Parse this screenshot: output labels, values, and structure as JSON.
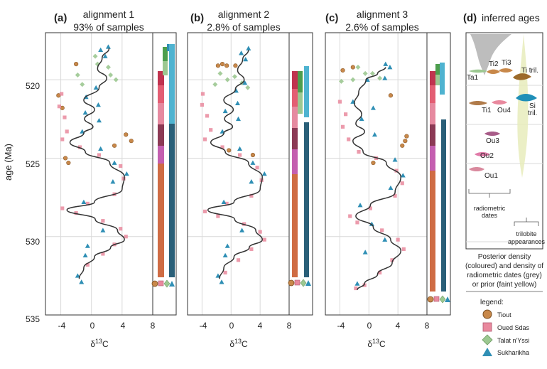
{
  "ylabel": "age (Ma)",
  "xlabel": "δ13C",
  "y_ticks": [
    520,
    525,
    530,
    535
  ],
  "x_ticks": [
    -4,
    0,
    4,
    8
  ],
  "chart_data": [
    {
      "type": "scatter",
      "letter": "(a)",
      "title_line1": "alignment 1",
      "title_line2": "93% of samples",
      "ylim": [
        535,
        517
      ],
      "xlim": [
        -6,
        8
      ],
      "series": [
        {
          "name": "Tiout",
          "points": [
            [
              -4.3,
              521.0
            ],
            [
              -3.8,
              521.8
            ],
            [
              -2.0,
              519.0
            ],
            [
              3.0,
              524.2
            ],
            [
              4.5,
              523.5
            ],
            [
              5.2,
              523.9
            ],
            [
              -3.4,
              525.0
            ],
            [
              -3.0,
              525.3
            ]
          ]
        },
        {
          "name": "Oued Sdas",
          "points": [
            [
              -3.9,
              520.9
            ],
            [
              -4.2,
              521.7
            ],
            [
              -3.5,
              522.4
            ],
            [
              -3.2,
              523.3
            ],
            [
              -3.8,
              523.8
            ],
            [
              -1.5,
              524.3
            ],
            [
              1.0,
              524.8
            ],
            [
              3.8,
              525.5
            ],
            [
              4.2,
              526.3
            ],
            [
              3.0,
              527.3
            ],
            [
              -0.5,
              527.9
            ],
            [
              -3.8,
              528.2
            ],
            [
              -2.0,
              528.5
            ],
            [
              1.5,
              529.0
            ],
            [
              3.8,
              529.5
            ],
            [
              4.5,
              530.0
            ],
            [
              3.0,
              530.5
            ],
            [
              1.5,
              531.1
            ],
            [
              -0.5,
              531.8
            ]
          ]
        },
        {
          "name": "Talat n'Yssi",
          "points": [
            [
              0.5,
              518.5
            ],
            [
              0.8,
              519.0
            ],
            [
              2.2,
              519.2
            ],
            [
              2.5,
              519.7
            ],
            [
              3.2,
              520.0
            ],
            [
              -1.8,
              519.7
            ],
            [
              -1.2,
              520.3
            ]
          ]
        },
        {
          "name": "Sukharikha",
          "points": [
            [
              2.2,
              517.9
            ],
            [
              1.2,
              518.1
            ],
            [
              1.8,
              518.5
            ],
            [
              0.6,
              520.5
            ],
            [
              -0.7,
              521.1
            ],
            [
              0.9,
              521.6
            ],
            [
              -0.8,
              522.1
            ],
            [
              1.0,
              522.6
            ],
            [
              -1.2,
              523.3
            ],
            [
              1.2,
              524.4
            ],
            [
              3.0,
              525.3
            ],
            [
              4.6,
              526.0
            ],
            [
              2.8,
              526.5
            ],
            [
              -1.0,
              527.8
            ],
            [
              1.5,
              529.6
            ],
            [
              -0.5,
              530.6
            ],
            [
              -0.8,
              531.2
            ],
            [
              -1.8,
              532.5
            ],
            [
              -1.3,
              532.9
            ]
          ]
        }
      ],
      "line": {
        "x": [
          2.3,
          1.4,
          0.8,
          2.0,
          1.0,
          -1.0,
          0.4,
          -0.9,
          0.2,
          -1.0,
          -2.8,
          -0.8,
          2.4,
          4.3,
          4.0,
          0.4,
          -3.2,
          0.5,
          3.4,
          4.3,
          2.5,
          0.4,
          -1.0,
          -1.6
        ],
        "y": [
          518.0,
          518.6,
          519.3,
          519.9,
          520.5,
          521.3,
          521.9,
          522.5,
          523.0,
          523.4,
          524.0,
          524.6,
          525.3,
          526.2,
          527.0,
          527.8,
          528.3,
          528.9,
          529.6,
          530.2,
          530.7,
          531.3,
          532.0,
          532.7
        ]
      }
    },
    {
      "type": "scatter",
      "letter": "(b)",
      "title_line1": "alignment 2",
      "title_line2": "2.8% of samples",
      "ylim": [
        535,
        517
      ],
      "xlim": [
        -6,
        8
      ],
      "series": [
        {
          "name": "Tiout",
          "points": [
            [
              -1.8,
              519.1
            ],
            [
              -0.6,
              519.1
            ],
            [
              0.6,
              519.1
            ],
            [
              -1.2,
              519.0
            ],
            [
              3.0,
              524.8
            ],
            [
              -0.3,
              524.5
            ]
          ]
        },
        {
          "name": "Oued Sdas",
          "points": [
            [
              -3.9,
              520.9
            ],
            [
              -4.0,
              521.6
            ],
            [
              -3.3,
              522.3
            ],
            [
              -2.8,
              523.2
            ],
            [
              -3.6,
              523.8
            ],
            [
              -1.2,
              524.3
            ],
            [
              1.2,
              524.8
            ],
            [
              3.6,
              525.6
            ],
            [
              4.2,
              526.4
            ],
            [
              2.8,
              527.4
            ],
            [
              -0.6,
              527.9
            ],
            [
              -3.6,
              528.4
            ],
            [
              -1.8,
              528.7
            ],
            [
              1.8,
              529.2
            ],
            [
              4.0,
              529.7
            ],
            [
              4.6,
              530.2
            ],
            [
              2.8,
              530.8
            ],
            [
              1.0,
              531.5
            ],
            [
              -0.8,
              532.3
            ]
          ]
        },
        {
          "name": "Talat n'Yssi",
          "points": [
            [
              -1.5,
              519.6
            ],
            [
              -0.5,
              520.0
            ],
            [
              0.5,
              519.8
            ],
            [
              1.5,
              520.2
            ],
            [
              2.3,
              520.5
            ],
            [
              -2.2,
              520.3
            ]
          ]
        },
        {
          "name": "Sukharikha",
          "points": [
            [
              2.4,
              518.0
            ],
            [
              1.4,
              518.3
            ],
            [
              2.0,
              518.7
            ],
            [
              1.9,
              520.2
            ],
            [
              0.7,
              520.7
            ],
            [
              0.9,
              521.5
            ],
            [
              -0.8,
              522.0
            ],
            [
              1.0,
              522.5
            ],
            [
              -1.2,
              523.3
            ],
            [
              1.2,
              524.4
            ],
            [
              3.0,
              525.3
            ],
            [
              4.6,
              526.0
            ],
            [
              2.8,
              526.5
            ],
            [
              -1.0,
              527.8
            ],
            [
              1.5,
              529.6
            ],
            [
              -0.5,
              530.6
            ],
            [
              -0.8,
              531.2
            ],
            [
              -1.8,
              532.5
            ],
            [
              -1.3,
              532.9
            ]
          ]
        }
      ],
      "line": {
        "x": [
          2.4,
          1.6,
          0.9,
          1.8,
          0.6,
          -1.0,
          0.3,
          -0.9,
          0.2,
          -1.0,
          -2.8,
          -0.8,
          2.4,
          4.3,
          4.0,
          0.4,
          -3.2,
          0.5,
          3.4,
          4.3,
          2.5,
          0.4,
          -1.0,
          -1.6
        ],
        "y": [
          518.1,
          518.7,
          519.4,
          520.0,
          520.6,
          521.3,
          521.9,
          522.5,
          523.0,
          523.4,
          524.0,
          524.6,
          525.3,
          526.2,
          527.0,
          527.8,
          528.3,
          528.9,
          529.6,
          530.2,
          530.7,
          531.3,
          532.0,
          532.7
        ]
      }
    },
    {
      "type": "scatter",
      "letter": "(c)",
      "title_line1": "alignment 3",
      "title_line2": "2.6% of samples",
      "ylim": [
        535,
        517
      ],
      "xlim": [
        -6,
        8
      ],
      "series": [
        {
          "name": "Tiout",
          "points": [
            [
              -3.6,
              519.4
            ],
            [
              -2.2,
              519.2
            ],
            [
              3.0,
              521.0
            ],
            [
              4.6,
              524.2
            ],
            [
              5.2,
              523.6
            ],
            [
              5.0,
              523.9
            ],
            [
              0.6,
              525.3
            ]
          ]
        },
        {
          "name": "Oued Sdas",
          "points": [
            [
              -4.0,
              521.4
            ],
            [
              -3.2,
              522.2
            ],
            [
              -3.6,
              523.0
            ],
            [
              -2.8,
              523.8
            ],
            [
              -1.4,
              524.6
            ],
            [
              1.0,
              525.0
            ],
            [
              3.8,
              525.8
            ],
            [
              4.6,
              526.6
            ],
            [
              3.6,
              527.4
            ],
            [
              0.2,
              528.2
            ],
            [
              -2.6,
              528.7
            ],
            [
              -1.6,
              529.1
            ],
            [
              1.8,
              529.6
            ],
            [
              4.0,
              530.2
            ],
            [
              4.8,
              530.8
            ],
            [
              3.2,
              531.5
            ],
            [
              1.5,
              532.3
            ],
            [
              -0.6,
              533.1
            ],
            [
              -1.8,
              533.3
            ]
          ]
        },
        {
          "name": "Talat n'Yssi",
          "points": [
            [
              -1.5,
              519.2
            ],
            [
              -0.5,
              519.6
            ],
            [
              0.5,
              519.6
            ],
            [
              1.5,
              519.9
            ],
            [
              -3.8,
              520.1
            ],
            [
              -2.2,
              520.0
            ]
          ]
        },
        {
          "name": "Sukharikha",
          "points": [
            [
              2.3,
              519.0
            ],
            [
              2.9,
              519.2
            ],
            [
              2.2,
              519.9
            ],
            [
              -0.2,
              520.0
            ],
            [
              -2.2,
              521.4
            ],
            [
              0.6,
              521.8
            ],
            [
              -1.0,
              522.5
            ],
            [
              0.8,
              523.5
            ],
            [
              3.6,
              525.1
            ],
            [
              4.7,
              526.1
            ],
            [
              3.0,
              526.9
            ],
            [
              -1.2,
              528.0
            ],
            [
              0.4,
              529.2
            ],
            [
              2.2,
              530.2
            ],
            [
              -0.5,
              531.0
            ],
            [
              -1.6,
              533.0
            ]
          ]
        }
      ],
      "line": {
        "x": [
          2.3,
          1.2,
          -0.4,
          -1.4,
          -2.0,
          -1.0,
          -1.8,
          -0.6,
          -2.2,
          -0.8,
          2.4,
          4.4,
          3.6,
          0.2,
          -1.8,
          0.6,
          3.0,
          4.4,
          3.2,
          1.2,
          -0.6,
          -1.6
        ],
        "y": [
          519.2,
          519.6,
          520.0,
          520.8,
          521.5,
          522.2,
          522.8,
          523.3,
          523.9,
          524.6,
          525.3,
          526.2,
          527.2,
          528.0,
          528.7,
          529.4,
          530.2,
          530.9,
          531.7,
          532.4,
          533.0,
          533.4
        ]
      }
    }
  ],
  "panel_d": {
    "letter": "(d)",
    "title": "inferred ages",
    "labels": {
      "ta1": "Ta1",
      "ti2": "Ti2",
      "ti3": "Ti3",
      "ti_tril": "Ti tril.",
      "ti1": "Ti1",
      "ou4": "Ou4",
      "si_tril_line1": "Si",
      "si_tril_line2": "tril.",
      "ou3": "Ou3",
      "ou2": "Ou2",
      "ou1": "Ou1"
    },
    "radiometric_line1": "radiometric",
    "radiometric_line2": "dates",
    "trilobite_line1": "trilobite",
    "trilobite_line2": "appearances",
    "caption": [
      "Posterior density",
      "(coloured) and density of",
      "radiometric dates (grey)",
      "or prior (faint yellow)"
    ]
  },
  "legend": {
    "title": "legend:",
    "items": [
      {
        "label": "Tiout",
        "color": "#c8884a",
        "shape": "circle"
      },
      {
        "label": "Oued Sdas",
        "color": "#e9899e",
        "shape": "square"
      },
      {
        "label": "Talat n'Yssi",
        "color": "#9cc891",
        "shape": "diamond"
      },
      {
        "label": "Sukharikha",
        "color": "#2f8fb5",
        "shape": "triangle"
      }
    ]
  },
  "colors": {
    "tiout": "#c8884a",
    "oued": "#e9899e",
    "talat": "#9cc891",
    "sukh": "#2f8fb5",
    "curve": "#333333",
    "fit_green": "#4d9e4d"
  }
}
